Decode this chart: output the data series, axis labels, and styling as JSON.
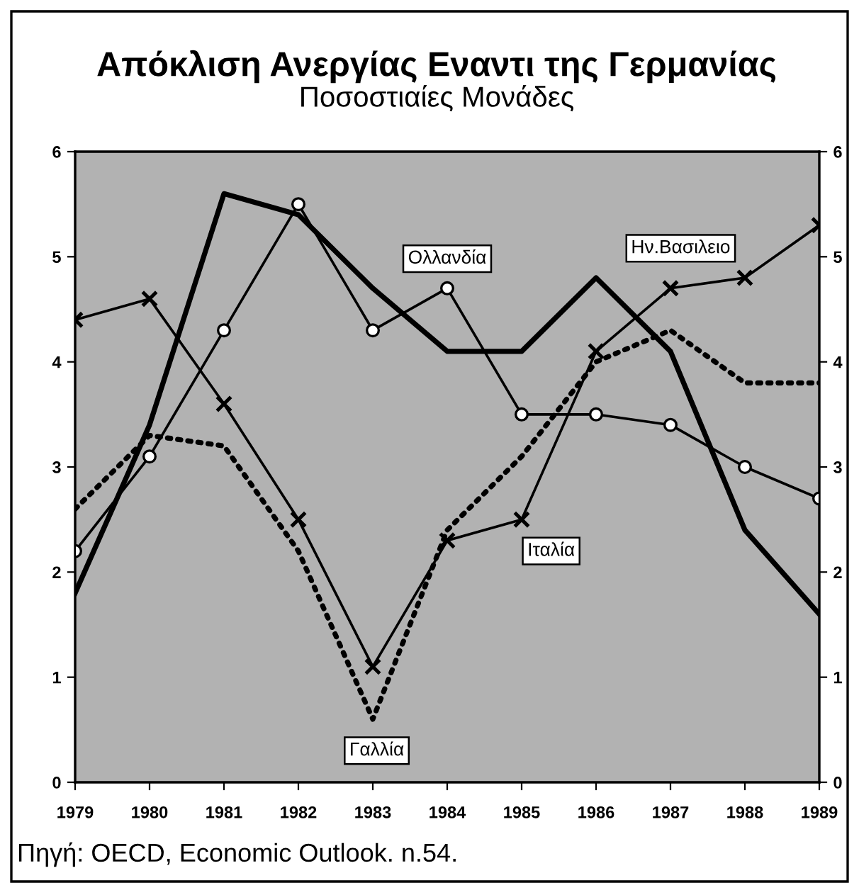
{
  "chart_data": {
    "type": "line",
    "title": "Απόκλιση Ανεργίας Εναντι της Γερμανίας",
    "subtitle": "Ποσοστιαίες Μονάδες",
    "annotations": [
      "Πηγή: OECD, Economic Outlook. n.54."
    ],
    "x": [
      1979,
      1980,
      1981,
      1982,
      1983,
      1984,
      1985,
      1986,
      1987,
      1988,
      1989
    ],
    "series": [
      {
        "name": "Ολλανδία",
        "color": "#000000",
        "marker": "circle",
        "line_style": "solid",
        "values": [
          2.2,
          3.1,
          4.3,
          5.5,
          4.3,
          4.7,
          3.5,
          3.5,
          3.4,
          3.0,
          2.7
        ]
      },
      {
        "name": "Ην.Βασιλειο",
        "color": "#000000",
        "marker": "none",
        "line_style": "solid",
        "values": [
          1.8,
          3.4,
          5.6,
          5.4,
          4.7,
          4.1,
          4.1,
          4.8,
          4.1,
          2.4,
          1.6
        ]
      },
      {
        "name": "Ιταλία",
        "color": "#000000",
        "marker": "cross",
        "line_style": "solid",
        "values": [
          4.4,
          4.6,
          3.6,
          2.5,
          1.1,
          2.3,
          2.5,
          4.1,
          4.7,
          4.8,
          5.3
        ]
      },
      {
        "name": "Γαλλία",
        "color": "#000000",
        "marker": "none",
        "line_style": "dotted",
        "values": [
          2.6,
          3.3,
          3.2,
          2.2,
          0.6,
          2.4,
          3.1,
          4.0,
          4.3,
          3.8,
          3.8
        ]
      }
    ],
    "xlim": [
      1979,
      1989
    ],
    "xticks": [
      1979,
      1980,
      1981,
      1982,
      1983,
      1984,
      1985,
      1986,
      1987,
      1988,
      1989
    ],
    "ylim": [
      0,
      6
    ],
    "yticks": [
      0,
      1,
      2,
      3,
      4,
      5,
      6
    ],
    "y2lim": [
      0,
      6
    ],
    "y2ticks": [
      0,
      1,
      2,
      3,
      4,
      5,
      6
    ]
  }
}
